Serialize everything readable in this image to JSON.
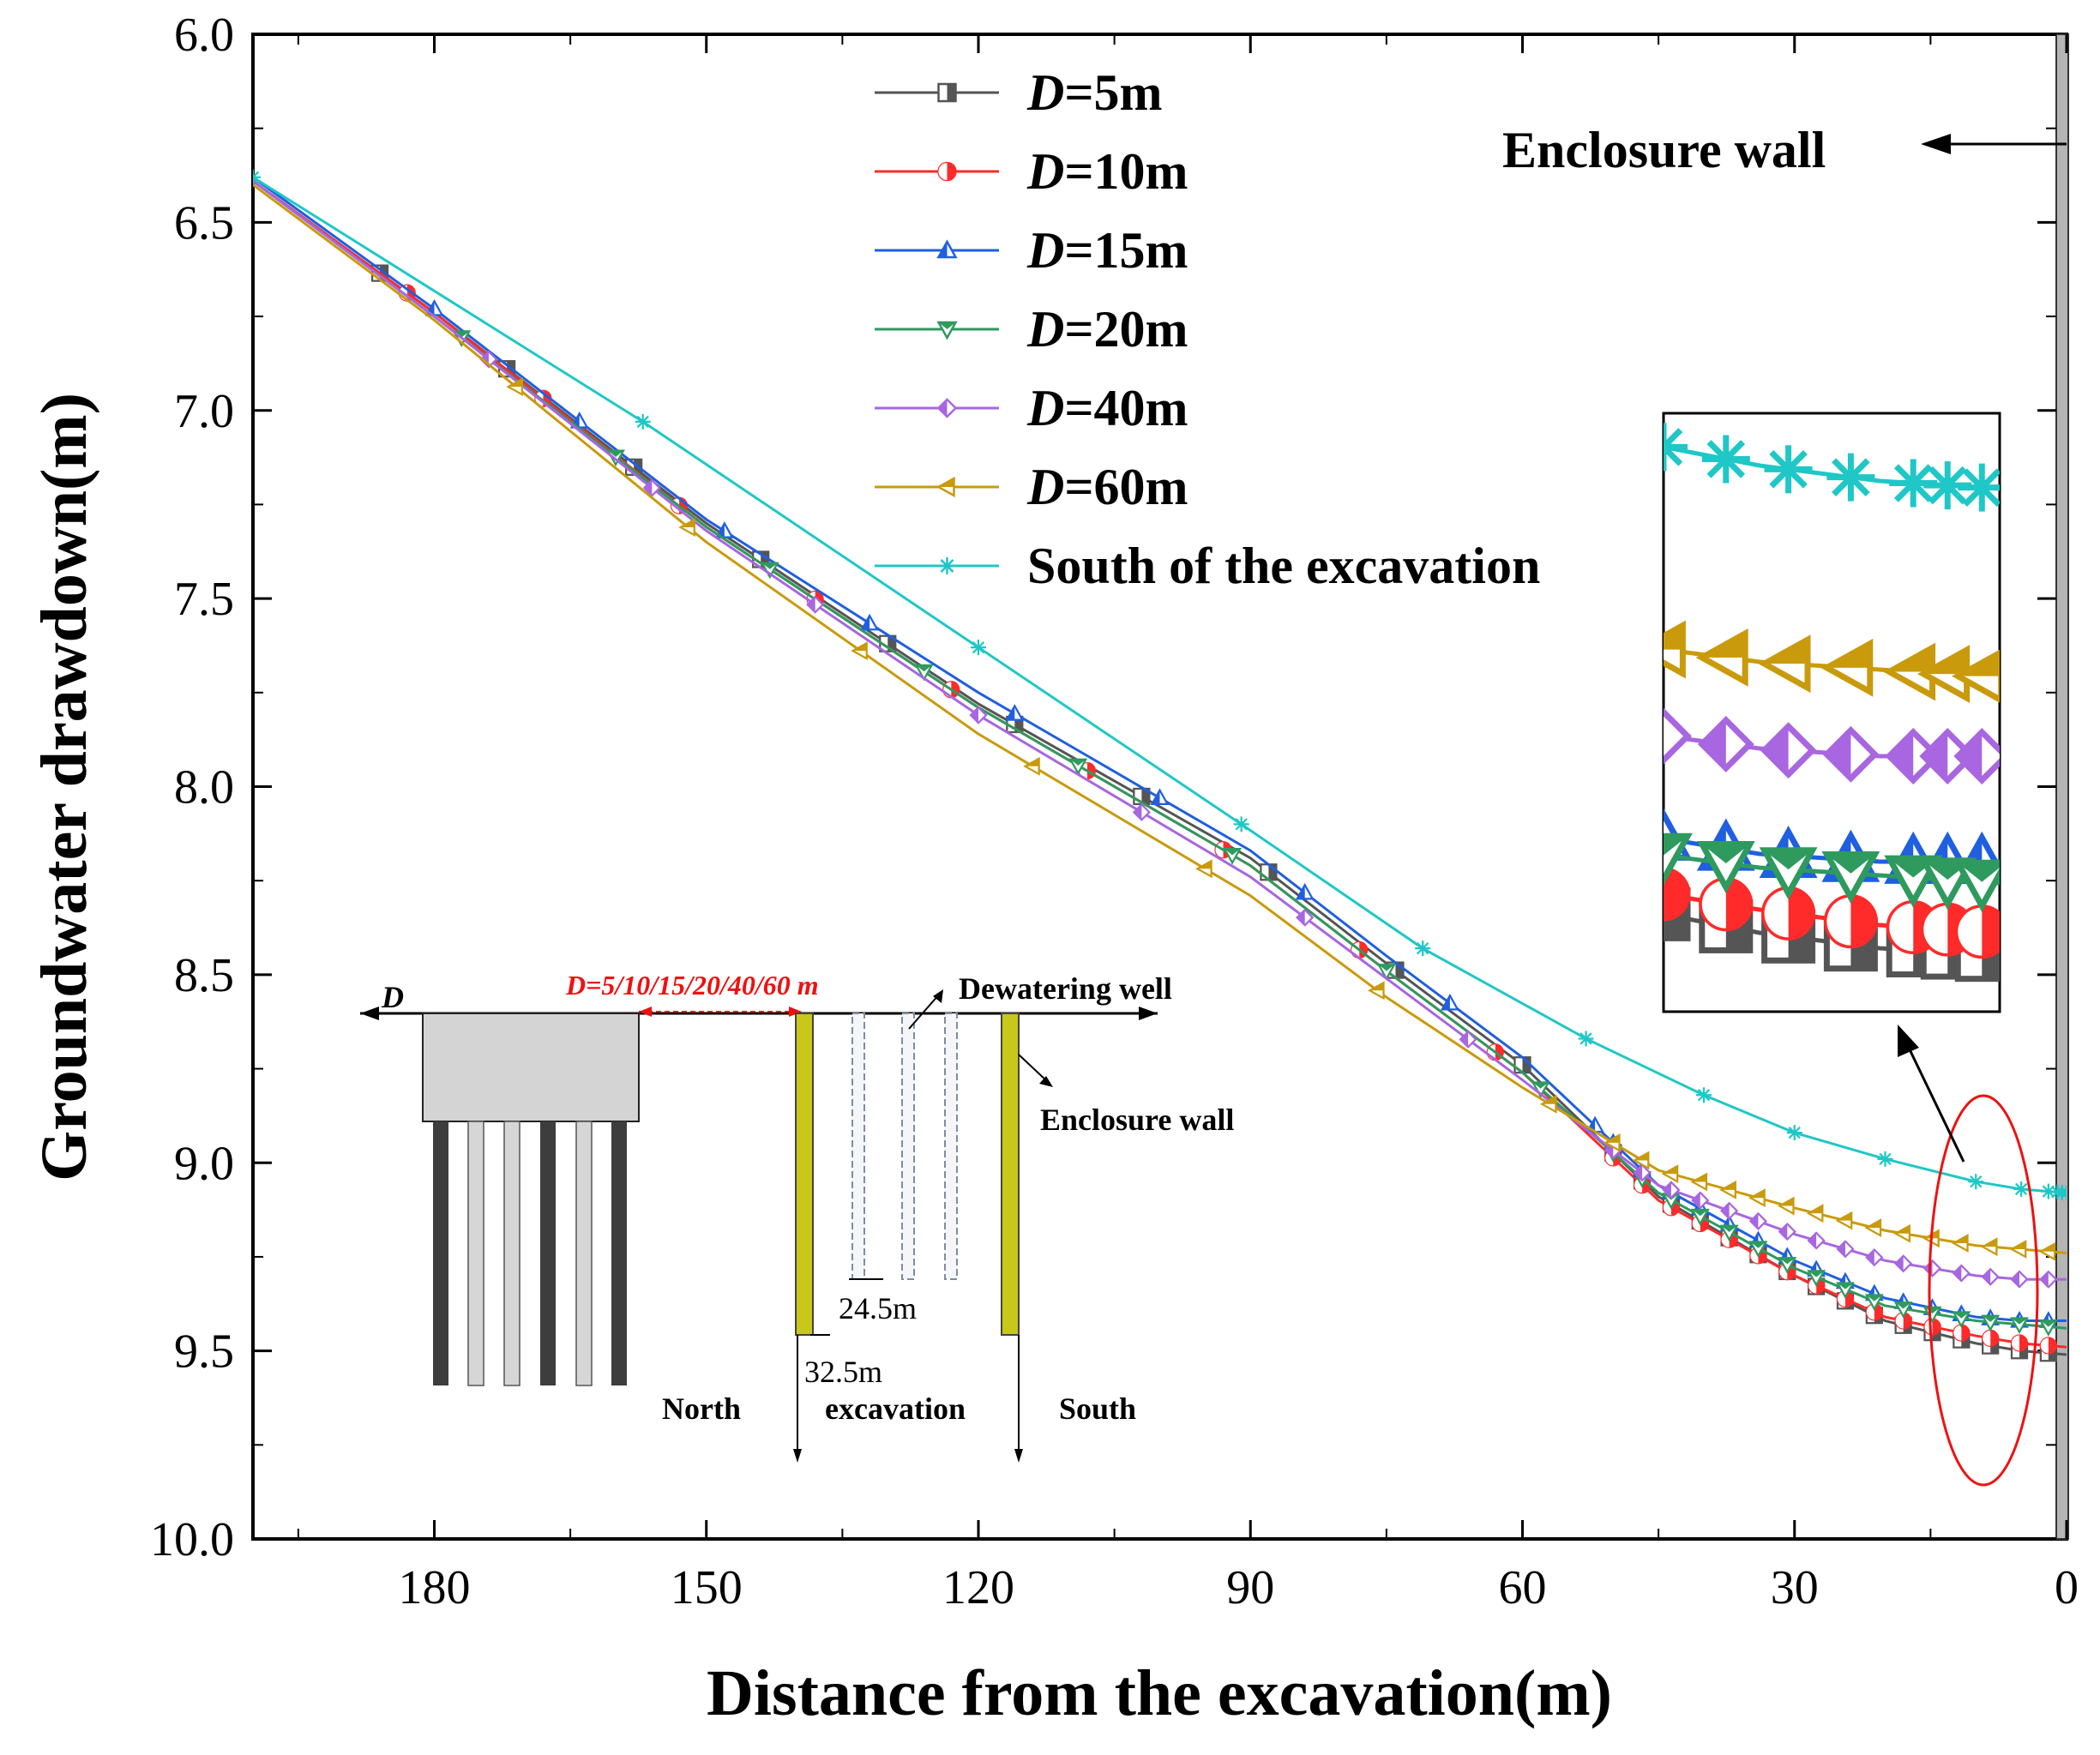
{
  "chart_data": {
    "type": "line",
    "xlabel": "Distance from the excavation(m)",
    "ylabel": "Groundwater drawdown(m)",
    "xlim": [
      0,
      200
    ],
    "ylim": [
      6.0,
      10.0
    ],
    "x_reversed": true,
    "y_reversed": true,
    "xticks": [
      "180",
      "150",
      "120",
      "90",
      "60",
      "30",
      "0"
    ],
    "yticks": [
      "6.0",
      "6.5",
      "7.0",
      "7.5",
      "8.0",
      "8.5",
      "9.0",
      "9.5",
      "10.0"
    ],
    "legend_position": "top-center",
    "series": [
      {
        "name": "D=5m",
        "name_italic": "D",
        "name_rest": "=5m",
        "color": "#555555",
        "marker": "half-square",
        "x": [
          200,
          180,
          150,
          120,
          90,
          75,
          60,
          45,
          30,
          20,
          10,
          5,
          0
        ],
        "y": [
          6.39,
          6.74,
          7.3,
          7.78,
          8.19,
          8.47,
          8.74,
          9.09,
          9.3,
          9.42,
          9.48,
          9.5,
          9.51
        ]
      },
      {
        "name": "D=10m",
        "name_italic": "D",
        "name_rest": "=10m",
        "color": "#ff2a2a",
        "marker": "half-circle",
        "x": [
          200,
          180,
          150,
          120,
          90,
          75,
          60,
          45,
          30,
          20,
          10,
          5,
          0
        ],
        "y": [
          6.39,
          6.74,
          7.31,
          7.79,
          8.21,
          8.49,
          8.76,
          9.1,
          9.3,
          9.41,
          9.46,
          9.48,
          9.49
        ]
      },
      {
        "name": "D=15m",
        "name_italic": "D",
        "name_rest": "=15m",
        "color": "#1f5fe0",
        "marker": "half-triangle-up",
        "x": [
          200,
          180,
          150,
          120,
          90,
          75,
          60,
          45,
          30,
          20,
          10,
          5,
          0
        ],
        "y": [
          6.38,
          6.73,
          7.29,
          7.75,
          8.17,
          8.45,
          8.72,
          9.06,
          9.26,
          9.36,
          9.41,
          9.42,
          9.42
        ]
      },
      {
        "name": "D=20m",
        "name_italic": "D",
        "name_rest": "=20m",
        "color": "#2e9a5e",
        "marker": "half-triangle-down",
        "x": [
          200,
          180,
          150,
          120,
          90,
          75,
          60,
          45,
          30,
          20,
          10,
          5,
          0
        ],
        "y": [
          6.39,
          6.75,
          7.31,
          7.79,
          8.21,
          8.49,
          8.76,
          9.08,
          9.28,
          9.38,
          9.42,
          9.43,
          9.44
        ]
      },
      {
        "name": "D=40m",
        "name_italic": "D",
        "name_rest": "=40m",
        "color": "#a866e0",
        "marker": "half-diamond",
        "x": [
          200,
          180,
          150,
          120,
          90,
          75,
          60,
          45,
          30,
          20,
          10,
          5,
          0
        ],
        "y": [
          6.39,
          6.75,
          7.32,
          7.81,
          8.24,
          8.51,
          8.78,
          9.06,
          9.19,
          9.26,
          9.3,
          9.31,
          9.31
        ]
      },
      {
        "name": "D=60m",
        "name_italic": "D",
        "name_rest": "=60m",
        "color": "#c99a0c",
        "marker": "half-triangle-left",
        "x": [
          200,
          180,
          150,
          120,
          90,
          75,
          60,
          45,
          30,
          20,
          10,
          5,
          0
        ],
        "y": [
          6.4,
          6.76,
          7.35,
          7.86,
          8.29,
          8.56,
          8.8,
          9.02,
          9.12,
          9.18,
          9.22,
          9.23,
          9.24
        ]
      },
      {
        "name": "South of the excavation",
        "name_italic": "",
        "name_rest": "South of the excavation",
        "color": "#1fc7c7",
        "marker": "star",
        "x": [
          200,
          157,
          120,
          91,
          71,
          53,
          40,
          30,
          20,
          10,
          5,
          0
        ],
        "y": [
          6.38,
          7.03,
          7.63,
          8.1,
          8.43,
          8.67,
          8.82,
          8.92,
          8.99,
          9.05,
          9.07,
          9.08
        ]
      }
    ],
    "annotations": {
      "enclosure_wall": "Enclosure wall",
      "zoom_callout": "magnified view of curves near 0 m"
    },
    "inset": {
      "d_symbol": "D",
      "d_range": "D=5/10/15/20/40/60 m",
      "dewatering_well": "Dewatering well",
      "enclosure_wall": "Enclosure wall",
      "well_depth": "24.5m",
      "wall_depth": "32.5m",
      "north": "North",
      "excavation": "excavation",
      "south": "South"
    }
  }
}
